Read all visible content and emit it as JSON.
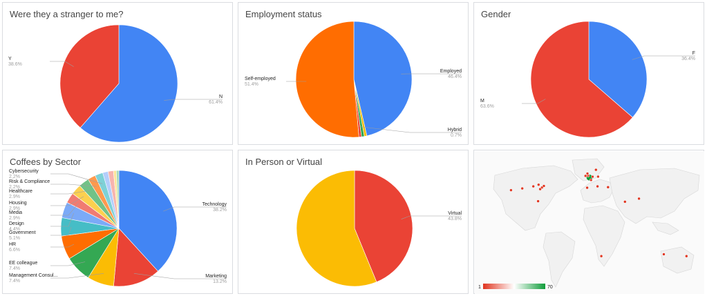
{
  "colors": {
    "blue": "#4285f4",
    "red": "#ea4335",
    "yellow": "#fbbc04",
    "green": "#34a853",
    "orange": "#ff6d01",
    "teal": "#46bdc6",
    "light_blue": "#7baaf7",
    "coral": "#f07b72",
    "gold": "#fcd04f",
    "light_green": "#71c287",
    "light_orange": "#ff994d",
    "light_teal": "#7ed1d7"
  },
  "chart_data": [
    {
      "type": "pie",
      "title": "Were they a stranger to me?",
      "slices": [
        {
          "label": "N",
          "pct_label": "61.4%",
          "value": 61.4,
          "color": "#4285f4"
        },
        {
          "label": "Y",
          "pct_label": "38.6%",
          "value": 38.6,
          "color": "#ea4335"
        }
      ]
    },
    {
      "type": "pie",
      "title": "Employment status",
      "slices": [
        {
          "label": "Employed",
          "pct_label": "46.4%",
          "value": 46.4,
          "color": "#4285f4"
        },
        {
          "label": "",
          "pct_label": "",
          "value": 0.7,
          "color": "#fbbc04"
        },
        {
          "label": "",
          "pct_label": "",
          "value": 0.8,
          "color": "#34a853"
        },
        {
          "label": "Hybrid",
          "pct_label": "0.7%",
          "value": 0.7,
          "color": "#ea4335"
        },
        {
          "label": "Self-employed",
          "pct_label": "51.4%",
          "value": 51.4,
          "color": "#ff6d01"
        }
      ]
    },
    {
      "type": "pie",
      "title": "Gender",
      "slices": [
        {
          "label": "F",
          "pct_label": "36.4%",
          "value": 36.4,
          "color": "#4285f4"
        },
        {
          "label": "M",
          "pct_label": "63.6%",
          "value": 63.6,
          "color": "#ea4335"
        }
      ]
    },
    {
      "type": "pie",
      "title": "Coffees by Sector",
      "slices": [
        {
          "label": "Technology",
          "pct_label": "38.2%",
          "value": 38.2,
          "color": "#4285f4"
        },
        {
          "label": "Marketing",
          "pct_label": "13.2%",
          "value": 13.2,
          "color": "#ea4335"
        },
        {
          "label": "Management Consul...",
          "pct_label": "7.4%",
          "value": 7.4,
          "color": "#fbbc04"
        },
        {
          "label": "EE colleague",
          "pct_label": "7.4%",
          "value": 7.4,
          "color": "#34a853"
        },
        {
          "label": "HR",
          "pct_label": "6.6%",
          "value": 6.6,
          "color": "#ff6d01"
        },
        {
          "label": "Government",
          "pct_label": "5.1%",
          "value": 5.1,
          "color": "#46bdc6"
        },
        {
          "label": "Design",
          "pct_label": "4.4%",
          "value": 4.4,
          "color": "#7baaf7"
        },
        {
          "label": "Media",
          "pct_label": "2.9%",
          "value": 2.9,
          "color": "#f07b72"
        },
        {
          "label": "Housing",
          "pct_label": "2.9%",
          "value": 2.9,
          "color": "#fcd04f"
        },
        {
          "label": "Healthcare",
          "pct_label": "2.9%",
          "value": 2.9,
          "color": "#71c287"
        },
        {
          "label": "Risk & Compliance",
          "pct_label": "2.2%",
          "value": 2.2,
          "color": "#ff994d"
        },
        {
          "label": "Cybersecurity",
          "pct_label": "2.2%",
          "value": 2.2,
          "color": "#7ed1d7"
        },
        {
          "label": "",
          "pct_label": "",
          "value": 1.5,
          "color": "#b3cefb"
        },
        {
          "label": "",
          "pct_label": "",
          "value": 1.5,
          "color": "#f7b4ae"
        },
        {
          "label": "",
          "pct_label": "",
          "value": 0.8,
          "color": "#fde49b"
        },
        {
          "label": "",
          "pct_label": "",
          "value": 0.7,
          "color": "#a8dab5"
        }
      ]
    },
    {
      "type": "pie",
      "title": "In Person or Virtual",
      "slices": [
        {
          "label": "Virtual",
          "pct_label": "43.8%",
          "value": 43.8,
          "color": "#ea4335"
        },
        {
          "label": "",
          "pct_label": "",
          "value": 56.2,
          "color": "#fbbc04"
        }
      ]
    },
    {
      "type": "geo",
      "title": "",
      "legend": {
        "min": "1",
        "max": "70",
        "color_min": "#e0341f",
        "color_mid": "#ffffff",
        "color_max": "#0f9d3a"
      },
      "points": [
        {
          "lon": -122.4,
          "lat": 37.8,
          "value": 2
        },
        {
          "lon": -104.9,
          "lat": 39.7,
          "value": 2
        },
        {
          "lon": -87.6,
          "lat": 41.9,
          "value": 1
        },
        {
          "lon": -79.4,
          "lat": 43.7,
          "value": 2
        },
        {
          "lon": -77.0,
          "lat": 38.9,
          "value": 1
        },
        {
          "lon": -74.0,
          "lat": 40.7,
          "value": 4
        },
        {
          "lon": -71.1,
          "lat": 42.4,
          "value": 1
        },
        {
          "lon": -80.2,
          "lat": 25.8,
          "value": 1
        },
        {
          "lon": -0.1,
          "lat": 51.5,
          "value": 70
        },
        {
          "lon": -2.2,
          "lat": 53.5,
          "value": 5
        },
        {
          "lon": -3.2,
          "lat": 55.9,
          "value": 2
        },
        {
          "lon": -6.3,
          "lat": 53.3,
          "value": 2
        },
        {
          "lon": 2.35,
          "lat": 48.86,
          "value": 3
        },
        {
          "lon": 4.9,
          "lat": 52.4,
          "value": 2
        },
        {
          "lon": 13.4,
          "lat": 52.5,
          "value": 2
        },
        {
          "lon": 10.0,
          "lat": 59.9,
          "value": 1
        },
        {
          "lon": 12.5,
          "lat": 41.9,
          "value": 1
        },
        {
          "lon": -3.7,
          "lat": 40.4,
          "value": 1
        },
        {
          "lon": 28.9,
          "lat": 41.0,
          "value": 1
        },
        {
          "lon": 55.3,
          "lat": 25.2,
          "value": 1
        },
        {
          "lon": 77.2,
          "lat": 28.6,
          "value": 1
        },
        {
          "lon": 18.4,
          "lat": -33.9,
          "value": 1
        },
        {
          "lon": 151.2,
          "lat": -33.9,
          "value": 1
        },
        {
          "lon": 115.9,
          "lat": -31.9,
          "value": 1
        }
      ]
    }
  ]
}
